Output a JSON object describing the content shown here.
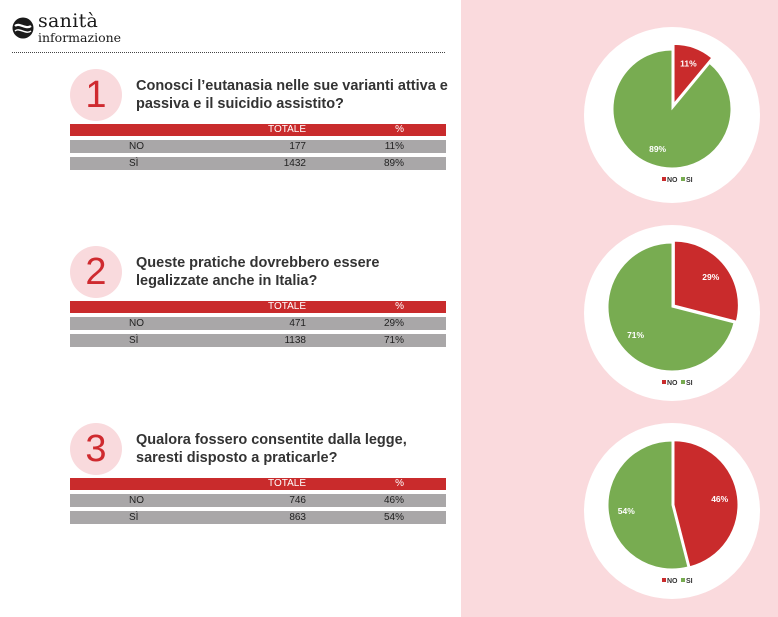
{
  "logo": {
    "line1": "sanità",
    "line2": "informazione"
  },
  "colors": {
    "no": "#c92b2c",
    "si": "#78ac51",
    "header": "#c92b2c",
    "row": "#a9a7a8",
    "panel": "#fadadd"
  },
  "table_headers": {
    "total": "TOTALE",
    "pct": "%"
  },
  "legend": {
    "no": "NO",
    "si": "SI"
  },
  "questions": [
    {
      "number": "1",
      "text": "Conosci l’eutanasia nelle sue varianti attiva e passiva e il suicidio assistito?",
      "rows": [
        {
          "label": "NO",
          "total": "177",
          "pct": "11%"
        },
        {
          "label": "SÌ",
          "total": "1432",
          "pct": "89%"
        }
      ]
    },
    {
      "number": "2",
      "text": "Queste pratiche dovrebbero essere legalizzate anche in Italia?",
      "rows": [
        {
          "label": "NO",
          "total": "471",
          "pct": "29%"
        },
        {
          "label": "SÌ",
          "total": "1138",
          "pct": "71%"
        }
      ]
    },
    {
      "number": "3",
      "text": "Qualora fossero consentite dalla legge, saresti disposto a praticarle?",
      "rows": [
        {
          "label": "NO",
          "total": "746",
          "pct": "46%"
        },
        {
          "label": "SÌ",
          "total": "863",
          "pct": "54%"
        }
      ]
    }
  ],
  "chart_data": [
    {
      "type": "pie",
      "categories": [
        "NO",
        "SI"
      ],
      "values": [
        11,
        89
      ],
      "labels": [
        "11%",
        "89%"
      ]
    },
    {
      "type": "pie",
      "categories": [
        "NO",
        "SI"
      ],
      "values": [
        29,
        71
      ],
      "labels": [
        "29%",
        "71%"
      ]
    },
    {
      "type": "pie",
      "categories": [
        "NO",
        "SI"
      ],
      "values": [
        46,
        54
      ],
      "labels": [
        "46%",
        "54%"
      ]
    }
  ]
}
